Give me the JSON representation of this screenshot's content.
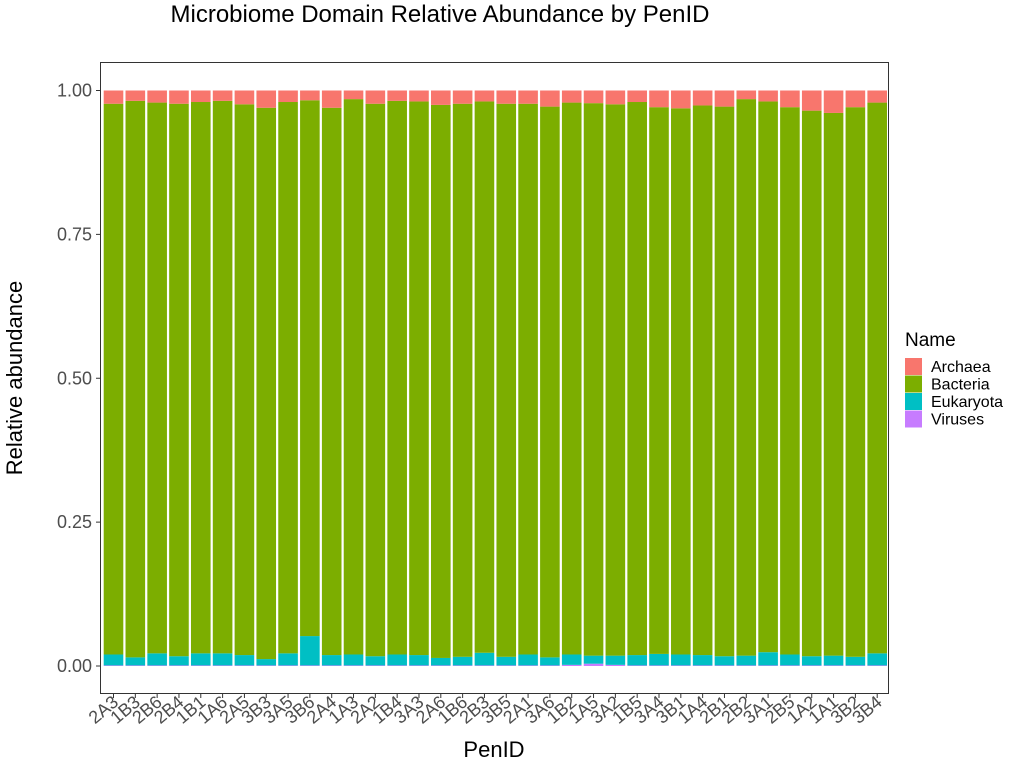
{
  "chart_data": {
    "type": "bar",
    "stacked": true,
    "title": "Microbiome Domain Relative Abundance by PenID",
    "xlabel": "PenID",
    "ylabel": "Relative abundance",
    "ylim": [
      0,
      1
    ],
    "y_ticks": [
      "0.00",
      "0.25",
      "0.50",
      "0.75",
      "1.00"
    ],
    "categories": [
      "2A3",
      "1B3",
      "2B6",
      "2B4",
      "1B1",
      "1A6",
      "2A5",
      "3B3",
      "3A5",
      "3B6",
      "2A4",
      "1A3",
      "2A2",
      "1B4",
      "3A3",
      "2A6",
      "1B6",
      "2B3",
      "3B5",
      "2A1",
      "3A6",
      "1B2",
      "1A5",
      "3A2",
      "1B5",
      "3A4",
      "3B1",
      "1A4",
      "2B1",
      "2B2",
      "3A1",
      "2B5",
      "1A2",
      "1A1",
      "3B2",
      "3B4"
    ],
    "series": [
      {
        "name": "Viruses",
        "color": "#C77CFF",
        "values": [
          0.001,
          0.001,
          0.001,
          0.001,
          0.001,
          0.001,
          0.001,
          0.001,
          0.001,
          0.001,
          0.001,
          0.001,
          0.001,
          0.001,
          0.001,
          0.001,
          0.001,
          0.001,
          0.001,
          0.001,
          0.001,
          0.002,
          0.004,
          0.002,
          0.001,
          0.001,
          0.001,
          0.001,
          0.001,
          0.001,
          0.001,
          0.001,
          0.001,
          0.001,
          0.001,
          0.001
        ]
      },
      {
        "name": "Eukaryota",
        "color": "#00BFC4",
        "values": [
          0.019,
          0.014,
          0.021,
          0.016,
          0.021,
          0.021,
          0.018,
          0.011,
          0.021,
          0.051,
          0.018,
          0.019,
          0.016,
          0.019,
          0.018,
          0.013,
          0.015,
          0.022,
          0.015,
          0.019,
          0.014,
          0.018,
          0.014,
          0.016,
          0.018,
          0.02,
          0.019,
          0.018,
          0.016,
          0.017,
          0.023,
          0.019,
          0.016,
          0.017,
          0.015,
          0.021
        ]
      },
      {
        "name": "Bacteria",
        "color": "#7CAE00",
        "values": [
          0.957,
          0.967,
          0.957,
          0.96,
          0.958,
          0.96,
          0.957,
          0.958,
          0.958,
          0.931,
          0.951,
          0.965,
          0.96,
          0.962,
          0.962,
          0.961,
          0.961,
          0.958,
          0.961,
          0.957,
          0.957,
          0.959,
          0.96,
          0.958,
          0.961,
          0.95,
          0.949,
          0.955,
          0.955,
          0.967,
          0.957,
          0.951,
          0.948,
          0.943,
          0.955,
          0.957
        ]
      },
      {
        "name": "Archaea",
        "color": "#F8766D",
        "values": [
          0.023,
          0.018,
          0.021,
          0.023,
          0.02,
          0.018,
          0.024,
          0.03,
          0.02,
          0.017,
          0.03,
          0.015,
          0.023,
          0.018,
          0.019,
          0.025,
          0.023,
          0.019,
          0.023,
          0.023,
          0.028,
          0.021,
          0.022,
          0.024,
          0.02,
          0.029,
          0.031,
          0.026,
          0.028,
          0.015,
          0.019,
          0.029,
          0.035,
          0.039,
          0.029,
          0.021
        ]
      }
    ],
    "legend": {
      "title": "Name",
      "position": "right",
      "items": [
        {
          "label": "Archaea",
          "color": "#F8766D"
        },
        {
          "label": "Bacteria",
          "color": "#7CAE00"
        },
        {
          "label": "Eukaryota",
          "color": "#00BFC4"
        },
        {
          "label": "Viruses",
          "color": "#C77CFF"
        }
      ]
    },
    "grid": false,
    "panel_border": true
  }
}
